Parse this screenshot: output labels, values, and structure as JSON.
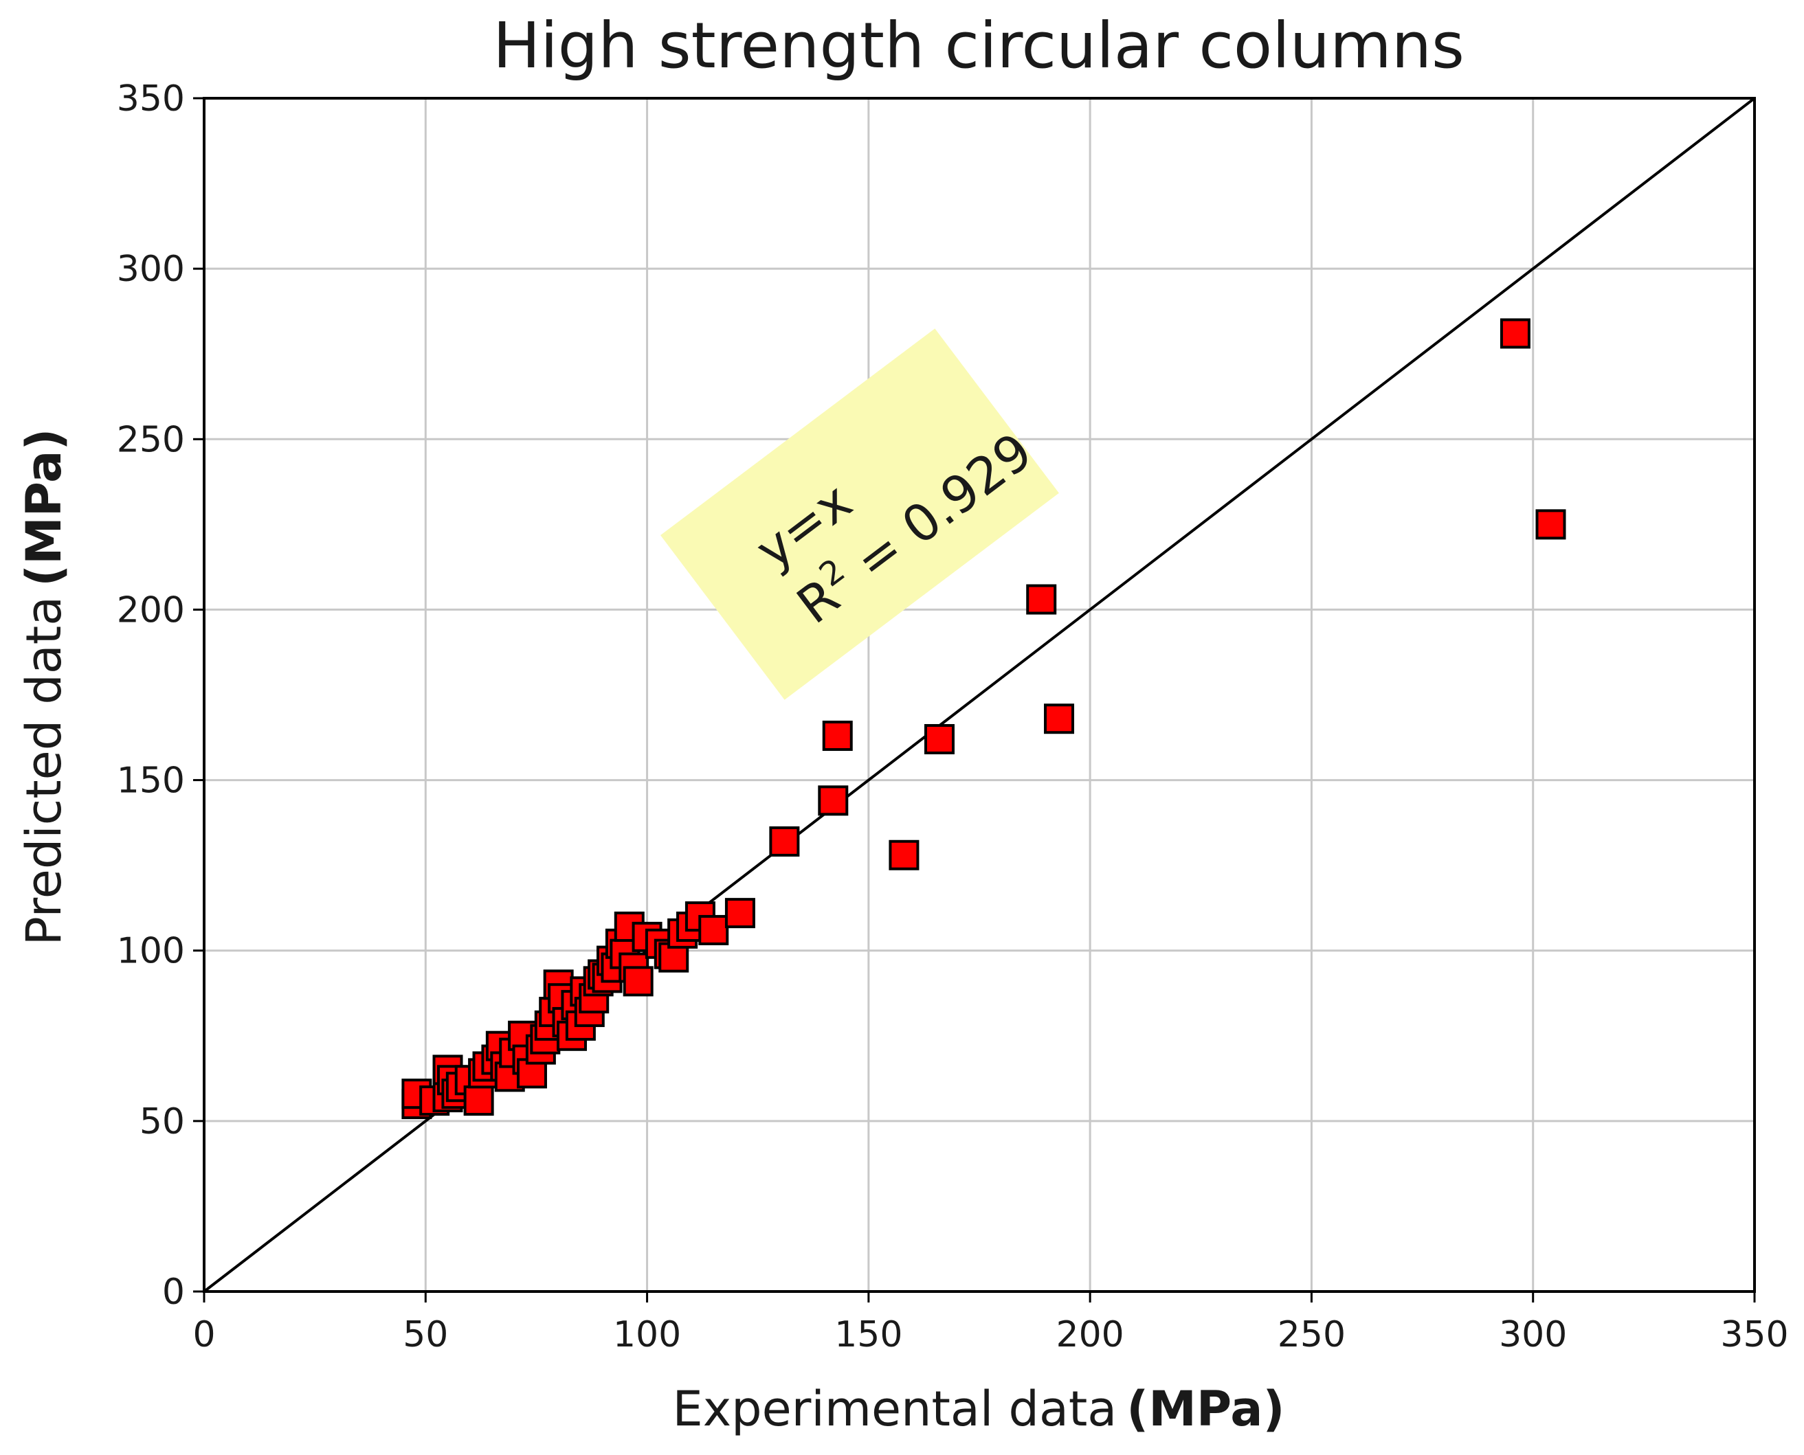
{
  "chart_data": {
    "type": "scatter",
    "title": "High strength circular columns",
    "xlabel": "Experimental data",
    "xlabel_unit": "(MPa)",
    "ylabel": "Predicted data",
    "ylabel_unit": "(MPa)",
    "xlim": [
      0,
      350
    ],
    "ylim": [
      0,
      350
    ],
    "xticks": [
      0,
      50,
      100,
      150,
      200,
      250,
      300,
      350
    ],
    "yticks": [
      0,
      50,
      100,
      150,
      200,
      250,
      300,
      350
    ],
    "grid": true,
    "marker": "square",
    "marker_color": "#ff0000",
    "marker_edge_color": "#000000",
    "reference_line": {
      "type": "y=x",
      "color": "#000000"
    },
    "annotation": {
      "line1": "y=x",
      "r2_prefix": "R",
      "r2_sup": "2",
      "r2_value": " = 0.929",
      "background": "#fafab4",
      "angle": -37
    },
    "points": [
      [
        48,
        55
      ],
      [
        48,
        58
      ],
      [
        52,
        56
      ],
      [
        55,
        57
      ],
      [
        55,
        65
      ],
      [
        56,
        62
      ],
      [
        57,
        58
      ],
      [
        58,
        60
      ],
      [
        60,
        62
      ],
      [
        62,
        56
      ],
      [
        63,
        64
      ],
      [
        64,
        66
      ],
      [
        66,
        68
      ],
      [
        67,
        72
      ],
      [
        68,
        66
      ],
      [
        69,
        63
      ],
      [
        70,
        70
      ],
      [
        72,
        75
      ],
      [
        73,
        68
      ],
      [
        74,
        64
      ],
      [
        76,
        71
      ],
      [
        77,
        74
      ],
      [
        78,
        78
      ],
      [
        79,
        82
      ],
      [
        80,
        90
      ],
      [
        81,
        86
      ],
      [
        82,
        79
      ],
      [
        83,
        75
      ],
      [
        84,
        84
      ],
      [
        85,
        78
      ],
      [
        86,
        88
      ],
      [
        87,
        82
      ],
      [
        88,
        86
      ],
      [
        89,
        91
      ],
      [
        90,
        93
      ],
      [
        91,
        92
      ],
      [
        92,
        97
      ],
      [
        93,
        95
      ],
      [
        94,
        102
      ],
      [
        95,
        99
      ],
      [
        96,
        107
      ],
      [
        97,
        95
      ],
      [
        98,
        91
      ],
      [
        100,
        104
      ],
      [
        103,
        102
      ],
      [
        105,
        99
      ],
      [
        106,
        98
      ],
      [
        108,
        105
      ],
      [
        110,
        107
      ],
      [
        112,
        110
      ],
      [
        115,
        106
      ],
      [
        121,
        111
      ],
      [
        131,
        132
      ],
      [
        142,
        144
      ],
      [
        143,
        163
      ],
      [
        158,
        128
      ],
      [
        166,
        162
      ],
      [
        189,
        203
      ],
      [
        193,
        168
      ],
      [
        296,
        281
      ],
      [
        304,
        225
      ]
    ]
  }
}
